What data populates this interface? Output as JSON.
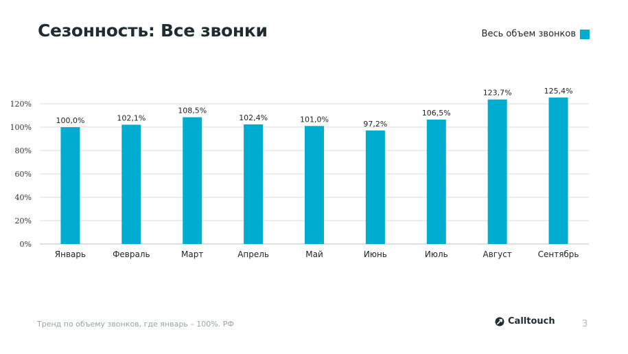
{
  "slide": {
    "title": "Сезонность: Все звонки",
    "footer": "Тренд по объему звонков, где январь – 100%. РФ",
    "page_number": "3",
    "logo_text": "Calltouch",
    "logo_icon": "calltouch-logo-icon"
  },
  "colors": {
    "bar": "#00acd0",
    "grid": "#d9d9d9",
    "axis": "#bfbfbf",
    "text": "#222222"
  },
  "chart_data": {
    "type": "bar",
    "categories": [
      "Январь",
      "Февраль",
      "Март",
      "Апрель",
      "Май",
      "Июнь",
      "Июль",
      "Август",
      "Сентябрь"
    ],
    "series": [
      {
        "name": "Весь объем звонков",
        "values": [
          100.0,
          102.1,
          108.5,
          102.4,
          101.0,
          97.2,
          106.5,
          123.7,
          125.4
        ],
        "labels": [
          "100,0%",
          "102,1%",
          "108,5%",
          "102,4%",
          "101,0%",
          "97,2%",
          "106,5%",
          "123,7%",
          "125,4%"
        ]
      }
    ],
    "yticks": [
      "0%",
      "20%",
      "40%",
      "60%",
      "80%",
      "100%",
      "120%"
    ],
    "ylim": [
      0,
      120
    ],
    "grid": true,
    "legend_position": "top-right"
  }
}
